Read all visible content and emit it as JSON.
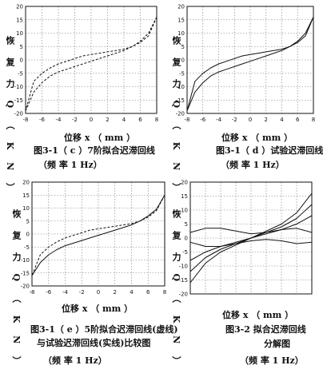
{
  "ylabel": "恢 复 力 Q （ K N ）",
  "xlabel": "位移 x （ mm ）",
  "ticks": {
    "x": [
      "-8",
      "-6",
      "-4",
      "-2",
      "0",
      "2",
      "4",
      "6",
      "8"
    ],
    "y": [
      "20",
      "15",
      "10",
      "5",
      "0",
      "-5",
      "-10",
      "-15",
      "-20"
    ]
  },
  "captions": {
    "a1": "图3-1（ c ）7阶拟合迟滞回线",
    "a2": "（频 率 1 Hz）",
    "b1": "图3-1（ d ）试验迟滞回线",
    "b2": "（频 率 1 Hz）",
    "c1": "图3-1（ e ）5阶拟合迟滞回线(虚线)",
    "c2": "与试验迟滞回线(实线)比较图",
    "c3": "（频 率 1 Hz）",
    "d1": "图3-2  拟合迟滞回线",
    "d2": "分解图",
    "d3": "（频 率 1 Hz）"
  },
  "chart_data": [
    {
      "type": "line",
      "title": "图3-1（ c ）7阶拟合迟滞回线",
      "xlabel": "位移 x （ mm ）",
      "ylabel": "恢复力 Q （KN）",
      "xlim": [
        -8,
        8
      ],
      "ylim": [
        -20,
        20
      ],
      "grid": true,
      "series": [
        {
          "x": [
            -8,
            -7,
            -6,
            -5,
            -4,
            -3,
            -2,
            -1,
            0,
            1,
            2,
            3,
            4,
            5,
            6,
            7,
            8
          ],
          "values": [
            -19,
            -12,
            -8.5,
            -6,
            -4.5,
            -3.5,
            -2.5,
            -1.5,
            -0.5,
            0.5,
            1.5,
            2.5,
            3.5,
            5,
            7,
            10,
            16
          ]
        },
        {
          "x": [
            8,
            7,
            6,
            5,
            4,
            3,
            2,
            1,
            0,
            -1,
            -2,
            -3,
            -4,
            -5,
            -6,
            -7,
            -8
          ],
          "values": [
            16,
            9,
            6.5,
            5,
            4,
            3.5,
            3,
            2.5,
            2,
            1.5,
            0.5,
            -0.5,
            -1.5,
            -3,
            -5,
            -8,
            -19
          ]
        }
      ]
    },
    {
      "type": "line",
      "title": "图3-1（ d ）试验迟滞回线",
      "xlabel": "位移 x （ mm ）",
      "ylabel": "恢复力 Q （KN）",
      "xlim": [
        -8,
        8
      ],
      "ylim": [
        -20,
        20
      ],
      "grid": true,
      "series": [
        {
          "x": [
            -8,
            -7,
            -6,
            -5,
            -4,
            -3,
            -2,
            -1,
            0,
            1,
            2,
            3,
            4,
            5,
            6,
            7,
            8
          ],
          "values": [
            -19,
            -12,
            -8.5,
            -6,
            -4.5,
            -3.5,
            -2.5,
            -1.5,
            -0.5,
            0.5,
            1.5,
            2.5,
            3.5,
            5,
            7,
            10,
            16
          ]
        },
        {
          "x": [
            8,
            7,
            6,
            5,
            4,
            3,
            2,
            1,
            0,
            -1,
            -2,
            -3,
            -4,
            -5,
            -6,
            -7,
            -8
          ],
          "values": [
            16,
            9,
            6.5,
            5,
            4,
            3.5,
            3,
            2.5,
            2,
            1.5,
            0.5,
            -0.5,
            -1.5,
            -3,
            -5,
            -8,
            -19
          ]
        }
      ]
    },
    {
      "type": "line",
      "title": "图3-1（ e ）5阶拟合迟滞回线(虚线)与试验迟滞回线(实线)比较图",
      "xlabel": "位移 x （ mm ）",
      "ylabel": "恢复力 Q （KN）",
      "xlim": [
        -8,
        8
      ],
      "ylim": [
        -20,
        20
      ],
      "grid": true,
      "series": [
        {
          "name": "试验迟滞回线(实线)",
          "x": [
            -8,
            -7,
            -6,
            -5,
            -4,
            -3,
            -2,
            -1,
            0,
            1,
            2,
            3,
            4,
            5,
            6,
            7,
            8
          ],
          "values": [
            -16,
            -11,
            -8,
            -6,
            -4.5,
            -3.5,
            -2.5,
            -1.5,
            -0.5,
            0.5,
            1.5,
            2.5,
            3.5,
            5,
            7,
            9.5,
            15
          ]
        },
        {
          "name": "5阶拟合迟滞回线(虚线)",
          "x": [
            8,
            7,
            6,
            5,
            4,
            3,
            2,
            1,
            0,
            -1,
            -2,
            -3,
            -4,
            -5,
            -6,
            -7,
            -8
          ],
          "values": [
            15,
            9,
            6.5,
            5,
            4,
            3.5,
            3,
            2.5,
            2,
            1.5,
            0.5,
            -0.5,
            -1.5,
            -3,
            -5,
            -8,
            -16
          ]
        }
      ]
    },
    {
      "type": "line",
      "title": "图3-2 拟合迟滞回线分解图",
      "xlabel": "位移 x （ mm ）",
      "ylabel": "恢复力 Q （KN）",
      "xlim": [
        -8,
        8
      ],
      "ylim": [
        -20,
        20
      ],
      "grid": true,
      "series": [
        {
          "x": [
            -8,
            -6,
            -4,
            -2,
            0,
            2,
            4,
            6,
            8
          ],
          "values": [
            2,
            3.5,
            3.5,
            2.5,
            1.5,
            2,
            3,
            3.5,
            2
          ]
        },
        {
          "x": [
            -8,
            -6,
            -4,
            -2,
            0,
            2,
            4,
            6,
            8
          ],
          "values": [
            -1.5,
            -3,
            -3,
            -2,
            -1,
            -0.5,
            -1,
            -2,
            -1.5
          ]
        },
        {
          "x": [
            -8,
            -6,
            -4,
            -2,
            0,
            2,
            4,
            6,
            8
          ],
          "values": [
            -16,
            -9,
            -5,
            -2.5,
            0,
            2.5,
            5,
            9,
            16
          ]
        },
        {
          "x": [
            -8,
            -6,
            -4,
            -2,
            0,
            2,
            4,
            6,
            8
          ],
          "values": [
            -12,
            -7,
            -4,
            -2,
            0,
            2,
            4,
            7,
            12
          ]
        },
        {
          "x": [
            -8,
            -6,
            -4,
            -2,
            0,
            2,
            4,
            6,
            8
          ],
          "values": [
            -8,
            -5,
            -3,
            -1.5,
            0,
            1.5,
            3,
            5,
            8
          ]
        }
      ]
    }
  ]
}
